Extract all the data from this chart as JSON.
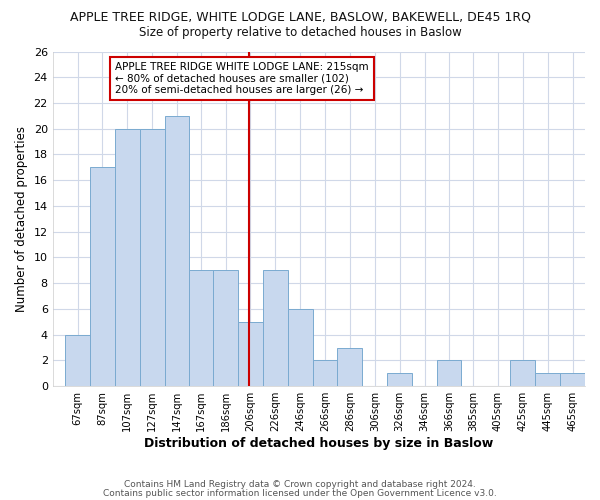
{
  "title1": "APPLE TREE RIDGE, WHITE LODGE LANE, BASLOW, BAKEWELL, DE45 1RQ",
  "title2": "Size of property relative to detached houses in Baslow",
  "xlabel": "Distribution of detached houses by size in Baslow",
  "ylabel": "Number of detached properties",
  "categories": [
    "67sqm",
    "87sqm",
    "107sqm",
    "127sqm",
    "147sqm",
    "167sqm",
    "186sqm",
    "206sqm",
    "226sqm",
    "246sqm",
    "266sqm",
    "286sqm",
    "306sqm",
    "326sqm",
    "346sqm",
    "366sqm",
    "385sqm",
    "405sqm",
    "425sqm",
    "445sqm",
    "465sqm"
  ],
  "values": [
    4,
    17,
    20,
    20,
    21,
    9,
    9,
    5,
    9,
    6,
    2,
    3,
    0,
    1,
    0,
    2,
    0,
    0,
    2,
    1,
    1
  ],
  "bar_color": "#c8d8ee",
  "bar_edge_color": "#7aaad0",
  "vline_color": "#cc0000",
  "annotation_line1": "APPLE TREE RIDGE WHITE LODGE LANE: 215sqm",
  "annotation_line2": "← 80% of detached houses are smaller (102)",
  "annotation_line3": "20% of semi-detached houses are larger (26) →",
  "footer1": "Contains HM Land Registry data © Crown copyright and database right 2024.",
  "footer2": "Contains public sector information licensed under the Open Government Licence v3.0.",
  "bg_color": "#ffffff",
  "ylim": [
    0,
    26
  ],
  "yticks": [
    0,
    2,
    4,
    6,
    8,
    10,
    12,
    14,
    16,
    18,
    20,
    22,
    24,
    26
  ],
  "bin_starts": [
    67,
    87,
    107,
    127,
    147,
    167,
    186,
    206,
    226,
    246,
    266,
    286,
    306,
    326,
    346,
    366,
    385,
    405,
    425,
    445,
    465
  ],
  "vline_x": 215
}
